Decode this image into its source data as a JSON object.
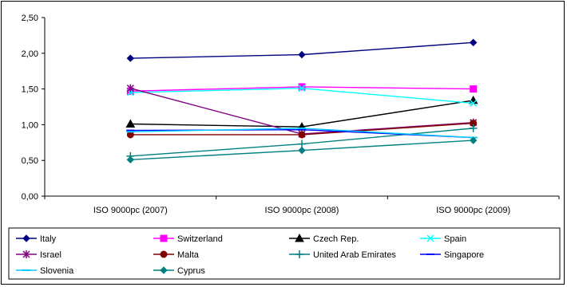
{
  "chart_data": {
    "type": "line",
    "title": "",
    "xlabel": "",
    "ylabel": "",
    "categories": [
      "ISO 9000pc (2007)",
      "ISO 9000pc (2008)",
      "ISO 9000pc (2009)"
    ],
    "ylim": [
      0,
      2.5
    ],
    "yticks": [
      0,
      0.5,
      1,
      1.5,
      2,
      2.5
    ],
    "ytick_labels": [
      "0,00",
      "0,50",
      "1,00",
      "1,50",
      "2,00",
      "2,50"
    ],
    "grid": false,
    "legend_position": "bottom",
    "series": [
      {
        "name": "Italy",
        "values": [
          1.93,
          1.98,
          2.15
        ],
        "color": "#000080",
        "marker": "diamond"
      },
      {
        "name": "Switzerland",
        "values": [
          1.47,
          1.53,
          1.5
        ],
        "color": "#ff00ff",
        "marker": "square"
      },
      {
        "name": "Czech Rep.",
        "values": [
          1.01,
          0.97,
          1.34
        ],
        "color": "#000000",
        "marker": "triangle"
      },
      {
        "name": "Spain",
        "values": [
          1.45,
          1.51,
          1.3
        ],
        "color": "#00ffff",
        "marker": "x"
      },
      {
        "name": "Israel",
        "values": [
          1.51,
          0.87,
          1.03
        ],
        "color": "#800080",
        "marker": "star"
      },
      {
        "name": "Malta",
        "values": [
          0.86,
          0.86,
          1.02
        ],
        "color": "#800000",
        "marker": "circle"
      },
      {
        "name": "United Arab Emirates",
        "values": [
          0.56,
          0.73,
          0.95
        ],
        "color": "#008080",
        "marker": "plus"
      },
      {
        "name": "Singapore",
        "values": [
          0.92,
          0.93,
          0.82
        ],
        "color": "#0000ff",
        "marker": "dash"
      },
      {
        "name": "Slovenia",
        "values": [
          0.9,
          0.95,
          0.82
        ],
        "color": "#00ccff",
        "marker": "dash"
      },
      {
        "name": "Cyprus",
        "values": [
          0.51,
          0.64,
          0.78
        ],
        "color": "#008080",
        "marker": "diamond"
      }
    ]
  }
}
